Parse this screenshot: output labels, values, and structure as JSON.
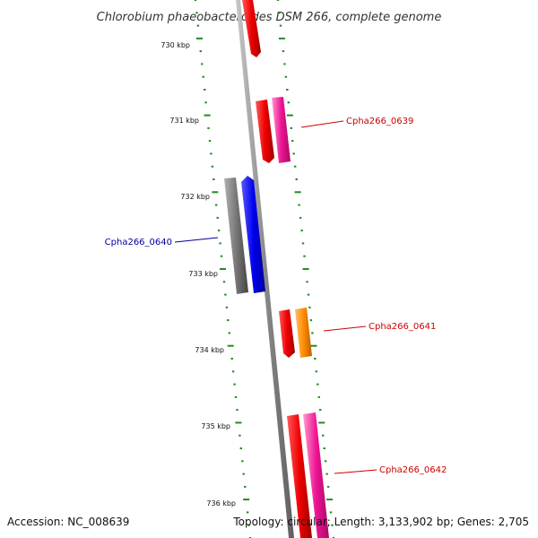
{
  "title": "Chlorobium phaeobacteroides DSM 266, complete genome",
  "footer": {
    "accession": "Accession: NC_008639",
    "summary": "Topology: circular; Length: 3,133,902 bp; Genes: 2,705"
  },
  "ruler_labels": [
    "730 kbp",
    "731 kbp",
    "732 kbp",
    "733 kbp",
    "734 kbp",
    "735 kbp",
    "736 kbp"
  ],
  "gene_labels": [
    {
      "name": "Cpha266_0639",
      "color": "#cc0000"
    },
    {
      "name": "Cpha266_0640",
      "color": "#000099"
    },
    {
      "name": "Cpha266_0641",
      "color": "#cc0000"
    },
    {
      "name": "Cpha266_0642",
      "color": "#cc0000"
    }
  ],
  "colors": {
    "backbone": "#8a8a8a",
    "dots": "#228b22",
    "red": "#ee0000",
    "pink": "#ee1493",
    "blue": "#0000ee",
    "gray": "#777777",
    "orange": "#ff8c00"
  }
}
